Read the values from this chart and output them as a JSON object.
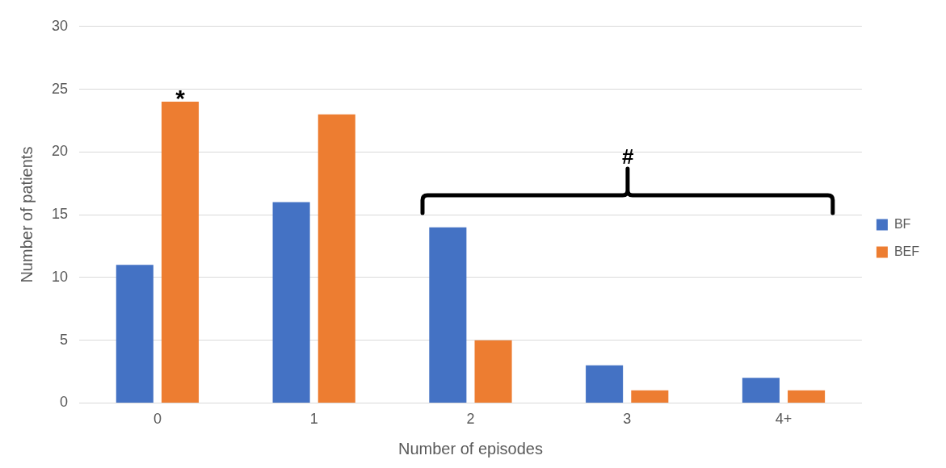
{
  "chart_data": {
    "type": "bar",
    "xlabel": "Number of episodes",
    "ylabel": "Number of patients",
    "categories": [
      "0",
      "1",
      "2",
      "3",
      "4+"
    ],
    "series": [
      {
        "name": "BF",
        "color": "#4472c4",
        "values": [
          11,
          16,
          14,
          3,
          2
        ]
      },
      {
        "name": "BEF",
        "color": "#ed7d31",
        "values": [
          24,
          23,
          5,
          1,
          1
        ]
      }
    ],
    "ylim": [
      0,
      30
    ],
    "yticks": [
      0,
      5,
      10,
      15,
      20,
      25,
      30
    ],
    "grid": "y",
    "legend": "right",
    "annotations": [
      "*",
      "#"
    ]
  }
}
